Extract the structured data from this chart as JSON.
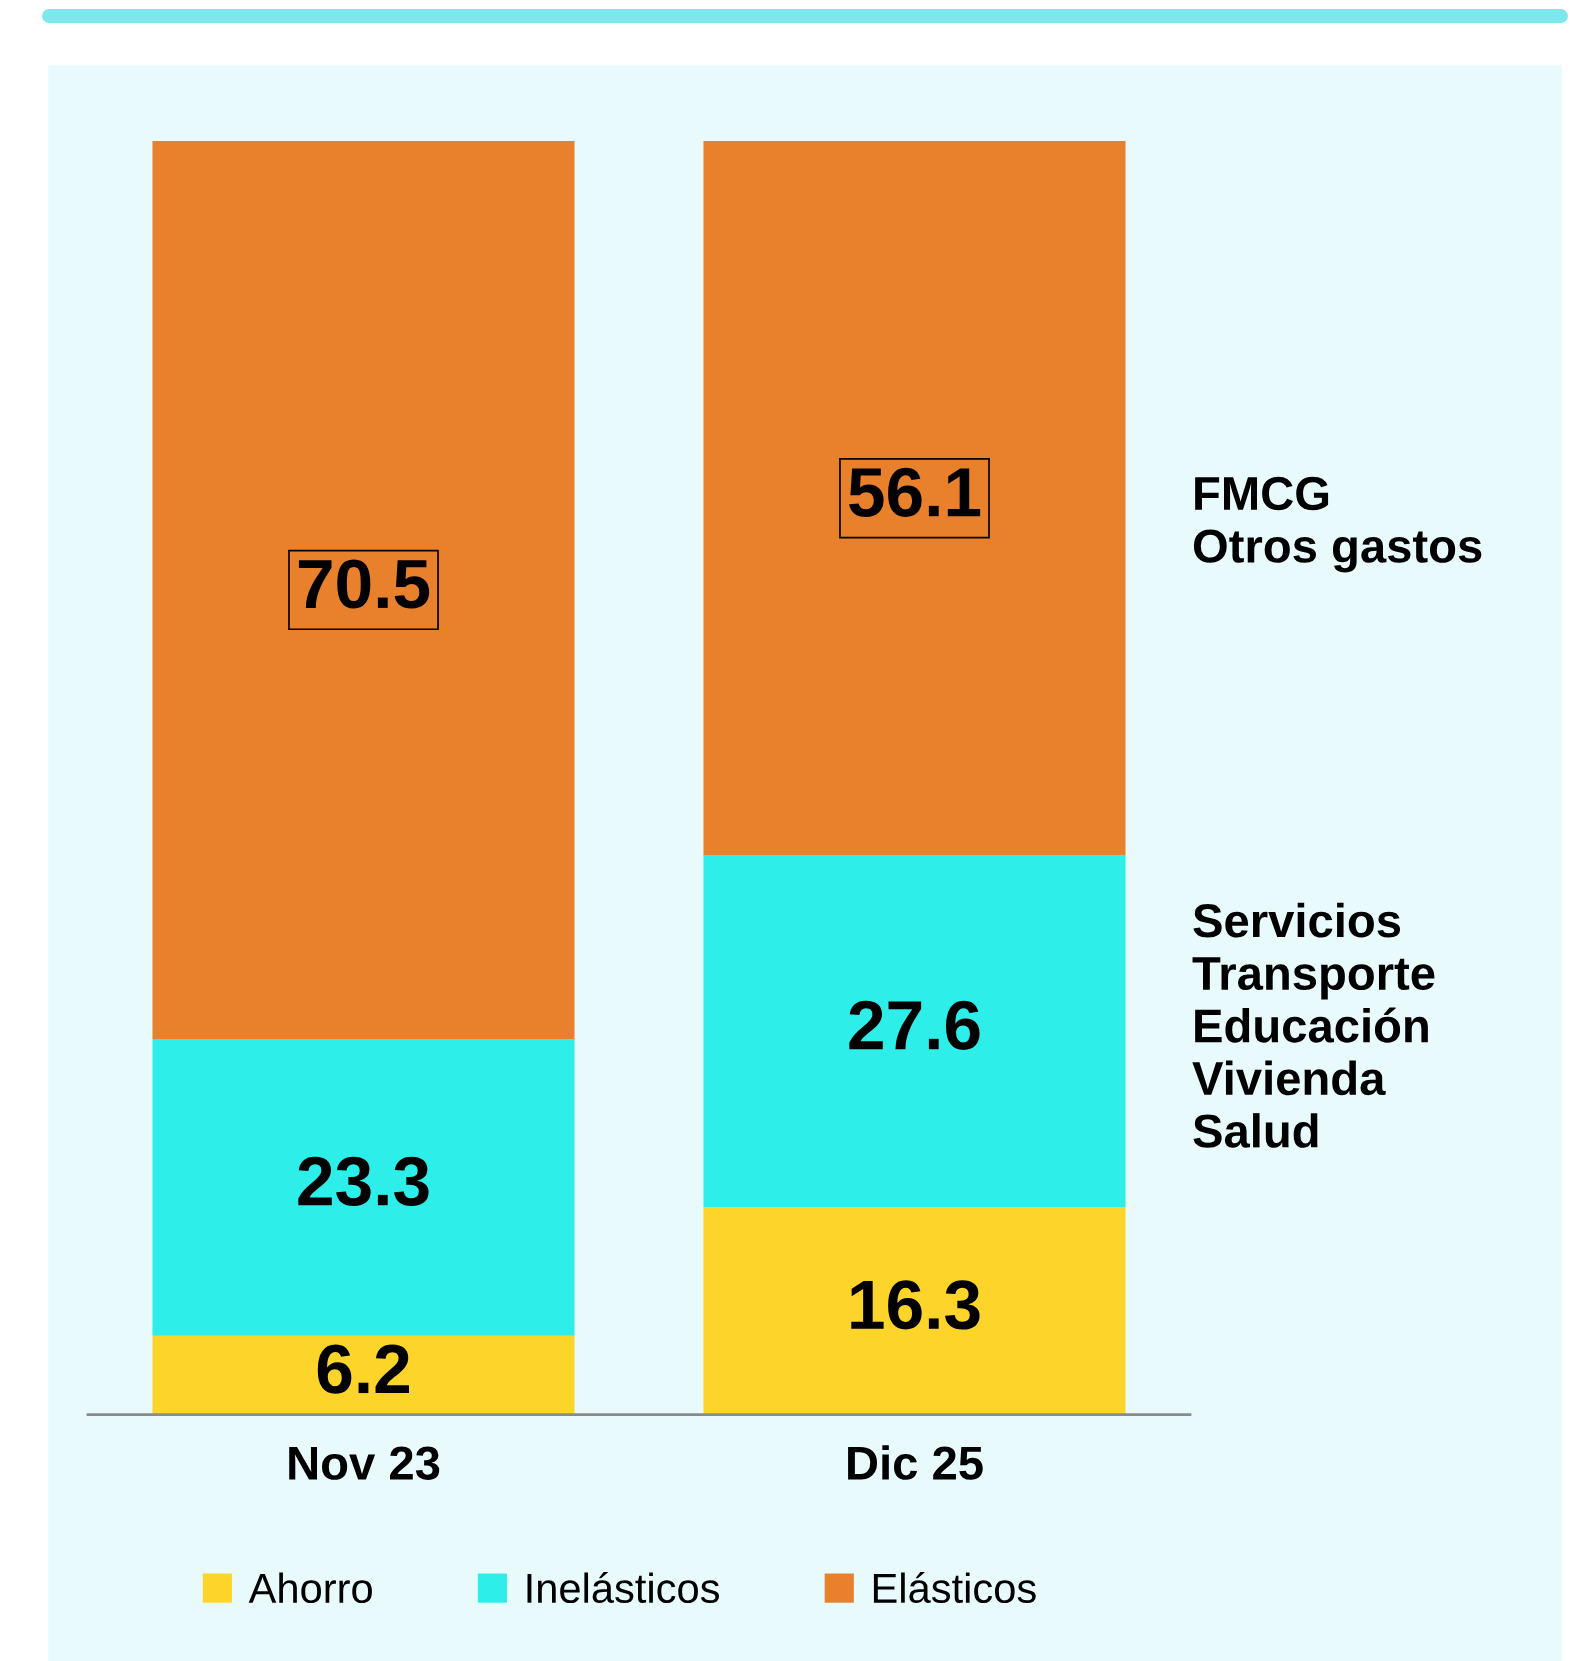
{
  "chart_data": {
    "type": "bar",
    "stacked": true,
    "categories": [
      "Nov 23",
      "Dic 25"
    ],
    "series": [
      {
        "name": "Ahorro",
        "color": "#fdd52a",
        "values": [
          6.2,
          16.3
        ]
      },
      {
        "name": "Inelásticos",
        "color": "#2eeeea",
        "values": [
          23.3,
          27.6
        ]
      },
      {
        "name": "Elásticos",
        "color": "#e8802c",
        "values": [
          70.5,
          56.1
        ]
      }
    ],
    "relative": false,
    "ylim": [
      0,
      100
    ],
    "data_labels": true,
    "legend": "bottom",
    "annotations": [
      "FMCG\nOtros gastos",
      "Servicios\nTransporte\nEducación\nVivienda\nSalud"
    ]
  }
}
